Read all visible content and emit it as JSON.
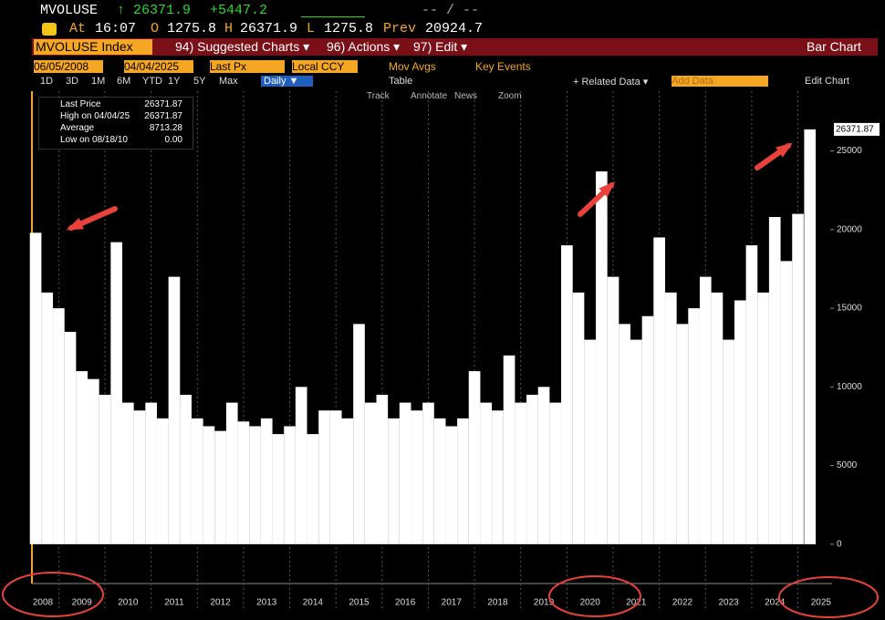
{
  "header": {
    "ticker": "MVOLUSE",
    "last": "↑ 26371.9",
    "change": "+5447.2",
    "bid_ask": "-- / --",
    "at_label": "At",
    "at": "16:07",
    "open_label": "O",
    "open": "1275.8",
    "high_label": "H",
    "high": "26371.9",
    "low_label": "L",
    "low": "1275.8",
    "prev_label": "Prev",
    "prev": "20924.7"
  },
  "toolbar": {
    "security": "MVOLUSE Index",
    "suggested": "94) Suggested Charts ▾",
    "actions": "96) Actions ▾",
    "edit": "97) Edit ▾",
    "chart_kind": "Bar Chart"
  },
  "controls": {
    "start": "06/05/2008",
    "end": "04/04/2025",
    "field": "Last Px",
    "currency": "Local CCY",
    "mov_avgs": "Mov Avgs",
    "key_events": "Key Events"
  },
  "periods": [
    "1D",
    "3D",
    "1M",
    "6M",
    "YTD",
    "1Y",
    "5Y",
    "Max"
  ],
  "frequency": "Daily ▼",
  "table": "Table",
  "related": "+ Related Data ▾",
  "add_data": "Add Data",
  "edit_chart": "Edit Chart",
  "tools": [
    "Track",
    "Annotate",
    "News",
    "Zoom"
  ],
  "legend": [
    {
      "label": "Last Price",
      "value": "26371.87"
    },
    {
      "label": "High on 04/04/25",
      "value": "26371.87"
    },
    {
      "label": "Average",
      "value": "8713.28"
    },
    {
      "label": "Low on 08/18/10",
      "value": "0.00"
    }
  ],
  "chart_data": {
    "type": "bar",
    "color": "#ffffff",
    "x": [
      2008.5,
      2008.75,
      2009,
      2009.25,
      2009.5,
      2009.75,
      2010,
      2010.25,
      2010.5,
      2010.75,
      2011,
      2011.25,
      2011.5,
      2011.75,
      2012,
      2012.25,
      2012.5,
      2012.75,
      2013,
      2013.25,
      2013.5,
      2013.75,
      2014,
      2014.25,
      2014.5,
      2014.75,
      2015,
      2015.25,
      2015.5,
      2015.75,
      2016,
      2016.25,
      2016.5,
      2016.75,
      2017,
      2017.25,
      2017.5,
      2017.75,
      2018,
      2018.25,
      2018.5,
      2018.75,
      2019,
      2019.25,
      2019.5,
      2019.75,
      2020,
      2020.25,
      2020.5,
      2020.75,
      2021,
      2021.25,
      2021.5,
      2021.75,
      2022,
      2022.25,
      2022.5,
      2022.75,
      2023,
      2023.25,
      2023.5,
      2023.75,
      2024,
      2024.25,
      2024.5,
      2024.75,
      2025,
      2025.26
    ],
    "values": [
      19800,
      16000,
      15000,
      13500,
      11000,
      10500,
      9500,
      19200,
      9000,
      8500,
      9000,
      8000,
      17000,
      9500,
      8000,
      7500,
      7200,
      9000,
      7800,
      7500,
      8000,
      7000,
      7500,
      10000,
      7000,
      8500,
      8500,
      8000,
      14000,
      9000,
      9500,
      8000,
      9000,
      8500,
      9000,
      8000,
      7500,
      8000,
      11000,
      9000,
      8500,
      12000,
      9000,
      9500,
      10000,
      9000,
      19000,
      16000,
      13000,
      23700,
      17000,
      14000,
      13000,
      14500,
      19500,
      16000,
      14000,
      15000,
      17000,
      16000,
      13000,
      15500,
      19000,
      16000,
      20800,
      18000,
      21000,
      26371.87
    ],
    "xlim": [
      2008.42,
      2025.7
    ],
    "xticks": [
      2008,
      2009,
      2010,
      2011,
      2012,
      2013,
      2014,
      2015,
      2016,
      2017,
      2018,
      2019,
      2020,
      2021,
      2022,
      2023,
      2024,
      2025
    ],
    "ylim": [
      -2500,
      28800
    ],
    "yticks": [
      0,
      5000,
      10000,
      15000,
      20000,
      25000
    ],
    "grid": true
  }
}
